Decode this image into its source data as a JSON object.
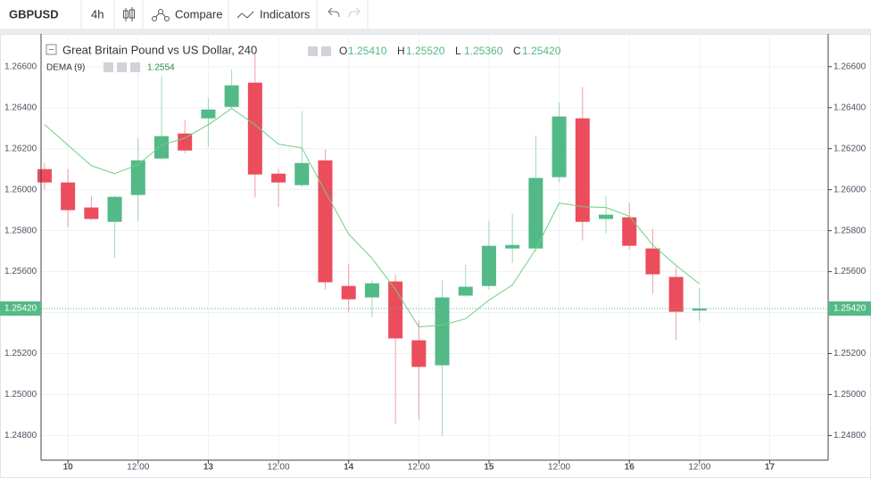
{
  "toolbar": {
    "symbol": "GBPUSD",
    "interval": "4h",
    "compare": "Compare",
    "indicators": "Indicators"
  },
  "chart_data": {
    "type": "candlestick",
    "title": "Great Britain Pound vs US Dollar, 240",
    "ohlc_legend": [
      {
        "key": "O",
        "label": "1.25410"
      },
      {
        "key": "H",
        "label": "1.25520"
      },
      {
        "key": "L",
        "label": "1.25360"
      },
      {
        "key": "C",
        "label": "1.25420"
      }
    ],
    "x": [
      0,
      1,
      2,
      3,
      4,
      5,
      6,
      7,
      8,
      9,
      10,
      11,
      12,
      13,
      14,
      15,
      16,
      17,
      18,
      19,
      20,
      21,
      22,
      23,
      24,
      25,
      26,
      27,
      28
    ],
    "open": [
      1.261,
      1.26035,
      1.25913,
      1.25843,
      1.25974,
      1.26152,
      1.26274,
      1.26348,
      1.26404,
      1.26522,
      1.26078,
      1.26022,
      1.26143,
      1.2553,
      1.25474,
      1.25552,
      1.25265,
      1.25143,
      1.25483,
      1.2553,
      1.25713,
      1.25713,
      1.26061,
      1.26348,
      1.25857,
      1.25865,
      1.25713,
      1.25574,
      1.2541
    ],
    "high": [
      1.2613,
      1.261,
      1.2597,
      1.2597,
      1.26252,
      1.26557,
      1.2634,
      1.26448,
      1.26587,
      1.26665,
      1.261,
      1.26383,
      1.26196,
      1.25639,
      1.25557,
      1.25587,
      1.25361,
      1.25557,
      1.25635,
      1.25848,
      1.25883,
      1.26265,
      1.26426,
      1.265,
      1.2597,
      1.25935,
      1.25809,
      1.25622,
      1.2552
    ],
    "low": [
      1.26,
      1.25817,
      1.2585,
      1.25665,
      1.25848,
      1.26143,
      1.26178,
      1.26209,
      1.26396,
      1.25961,
      1.25917,
      1.26013,
      1.25513,
      1.25404,
      1.25378,
      1.24857,
      1.24878,
      1.24796,
      1.25474,
      1.25513,
      1.25643,
      1.257,
      1.26035,
      1.25752,
      1.25787,
      1.25709,
      1.25491,
      1.25265,
      1.2536
    ],
    "close": [
      1.26035,
      1.259,
      1.25857,
      1.25965,
      1.26143,
      1.26261,
      1.26191,
      1.26391,
      1.26509,
      1.26074,
      1.26035,
      1.2613,
      1.25548,
      1.25465,
      1.25543,
      1.25274,
      1.25135,
      1.25474,
      1.25526,
      1.25726,
      1.2573,
      1.26057,
      1.26357,
      1.25843,
      1.25878,
      1.25726,
      1.25587,
      1.25404,
      1.2542
    ],
    "up_color": "#53b987",
    "down_color": "#eb4d5c",
    "series": [
      {
        "name": "DEMA (9)",
        "color": "#6fcf85",
        "value_label": "1.2554",
        "values": [
          1.26317,
          1.26217,
          1.26117,
          1.26078,
          1.26122,
          1.26217,
          1.26252,
          1.26317,
          1.26396,
          1.26317,
          1.26222,
          1.26204,
          1.25991,
          1.25783,
          1.25665,
          1.25513,
          1.2533,
          1.25339,
          1.2537,
          1.25461,
          1.25535,
          1.25709,
          1.25935,
          1.25917,
          1.25913,
          1.2587,
          1.2573,
          1.2563,
          1.2554
        ]
      }
    ],
    "last_price": {
      "value": 1.2542,
      "label": "1.25420"
    },
    "xlim": [
      -0.15,
      33.5
    ],
    "xticks": [
      {
        "value": 1,
        "label": "10"
      },
      {
        "value": 4,
        "label": "12:00"
      },
      {
        "value": 7,
        "label": "13"
      },
      {
        "value": 10,
        "label": "12:00"
      },
      {
        "value": 13,
        "label": "14"
      },
      {
        "value": 16,
        "label": "12:00"
      },
      {
        "value": 19,
        "label": "15"
      },
      {
        "value": 22,
        "label": "12:00"
      },
      {
        "value": 25,
        "label": "16"
      },
      {
        "value": 28,
        "label": "12:00"
      },
      {
        "value": 31,
        "label": "17"
      }
    ],
    "ylim": [
      1.2468,
      1.2676
    ],
    "yticks": [
      {
        "value": 1.248,
        "label": "1.24800"
      },
      {
        "value": 1.25,
        "label": "1.25000"
      },
      {
        "value": 1.252,
        "label": "1.25200"
      },
      {
        "value": 1.254,
        "label": "1.25400"
      },
      {
        "value": 1.256,
        "label": "1.25600"
      },
      {
        "value": 1.258,
        "label": "1.25800"
      },
      {
        "value": 1.26,
        "label": "1.26000"
      },
      {
        "value": 1.262,
        "label": "1.26200"
      },
      {
        "value": 1.264,
        "label": "1.26400"
      },
      {
        "value": 1.266,
        "label": "1.26600"
      }
    ],
    "grid": true
  }
}
